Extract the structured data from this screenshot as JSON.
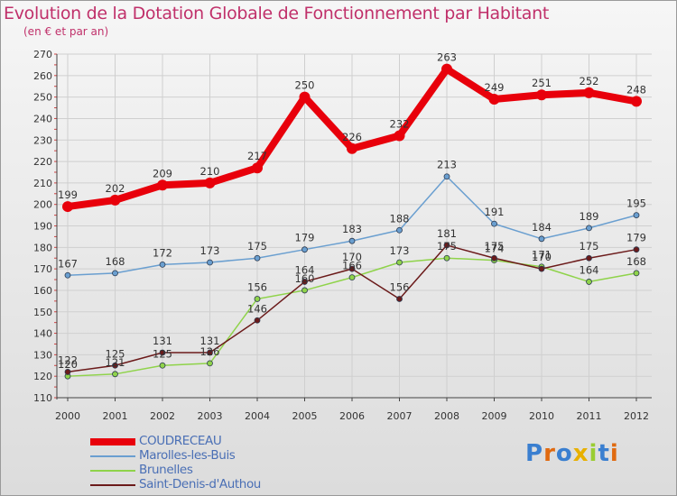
{
  "title": "Evolution de la Dotation Globale de Fonctionnement par Habitant",
  "subtitle": "(en € et par an)",
  "logo": {
    "text": "Proxiti",
    "colors": [
      "#3a7fd0",
      "#e06a10",
      "#3a7fd0",
      "#e8b000",
      "#9acd32",
      "#3a7fd0",
      "#e06a10"
    ]
  },
  "chart_data": {
    "type": "line",
    "categories": [
      "2000",
      "2001",
      "2002",
      "2003",
      "2004",
      "2005",
      "2006",
      "2007",
      "2008",
      "2009",
      "2010",
      "2011",
      "2012"
    ],
    "ylim": [
      110,
      270
    ],
    "yticks": [
      110,
      120,
      130,
      140,
      150,
      160,
      170,
      180,
      190,
      200,
      210,
      220,
      230,
      240,
      250,
      260,
      270
    ],
    "grid": true,
    "series": [
      {
        "name": "COUDRECEAU",
        "color": "#e8000b",
        "width": 8,
        "marker": 6,
        "values": [
          199,
          202,
          209,
          210,
          217,
          250,
          226,
          232,
          263,
          249,
          251,
          252,
          248
        ],
        "labels": [
          "199",
          "202",
          "209",
          "210",
          "217",
          "250",
          "226",
          "232",
          "263",
          "249",
          "251",
          "252",
          "248"
        ]
      },
      {
        "name": "Marolles-les-Buis",
        "color": "#6a9fd0",
        "width": 1.5,
        "marker": 3,
        "values": [
          167,
          168,
          172,
          173,
          175,
          179,
          183,
          188,
          213,
          191,
          184,
          189,
          195
        ],
        "labels": [
          "167",
          "168",
          "172",
          "173",
          "175",
          "179",
          "183",
          "188",
          "213",
          "191",
          "184",
          "189",
          "195"
        ]
      },
      {
        "name": "Brunelles",
        "color": "#8fd34a",
        "width": 1.5,
        "marker": 3,
        "values": [
          120,
          121,
          125,
          126,
          156,
          160,
          166,
          173,
          175,
          174,
          171,
          164,
          168
        ],
        "labels": [
          "120",
          "121",
          "125",
          "126",
          "156",
          "160",
          "166",
          "173",
          "175",
          "174",
          "171",
          "164",
          "168"
        ]
      },
      {
        "name": "Saint-Denis-d'Authou",
        "color": "#6b1a1a",
        "width": 1.5,
        "marker": 3,
        "values": [
          122,
          125,
          131,
          131,
          146,
          164,
          170,
          156,
          181,
          175,
          170,
          175,
          179
        ],
        "labels": [
          "122",
          "125",
          "131",
          "131",
          "146",
          "164",
          "170",
          "156",
          "181",
          "175",
          "170",
          "175",
          "179"
        ]
      }
    ]
  }
}
